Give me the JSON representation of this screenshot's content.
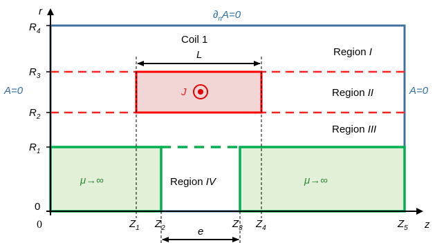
{
  "axes": {
    "x_label": "z",
    "y_label": "r",
    "origin_label": "0",
    "r_zero_label": "0"
  },
  "r_levels": [
    {
      "main": "R",
      "sub": "4"
    },
    {
      "main": "R",
      "sub": "3"
    },
    {
      "main": "R",
      "sub": "2"
    },
    {
      "main": "R",
      "sub": "1"
    }
  ],
  "z_levels": [
    {
      "main": "Z",
      "sub": "1"
    },
    {
      "main": "Z",
      "sub": "2"
    },
    {
      "main": "Z",
      "sub": "3"
    },
    {
      "main": "Z",
      "sub": "4"
    },
    {
      "main": "Z",
      "sub": "5"
    }
  ],
  "boundary": {
    "top": {
      "d": "∂",
      "n": "n",
      "rest": "A=0"
    },
    "left": "A=0",
    "right": "A=0"
  },
  "coil": {
    "title": "Coil 1",
    "length_label": "L",
    "current_label": "J"
  },
  "regions": [
    {
      "prefix": "Region ",
      "numeral": "I"
    },
    {
      "prefix": "Region ",
      "numeral": "II"
    },
    {
      "prefix": "Region ",
      "numeral": "III"
    },
    {
      "prefix": "Region ",
      "numeral": "IV"
    }
  ],
  "core": {
    "mu": "μ",
    "arrow": "→",
    "inf": "∞"
  },
  "gap_label": "e",
  "colors": {
    "boundary": "#41719c",
    "coil": "#ff0000",
    "coil_fill": "#f2d5d5",
    "core": "#00b050",
    "core_fill": "#e2efd9",
    "dashed": "#ff2020"
  }
}
